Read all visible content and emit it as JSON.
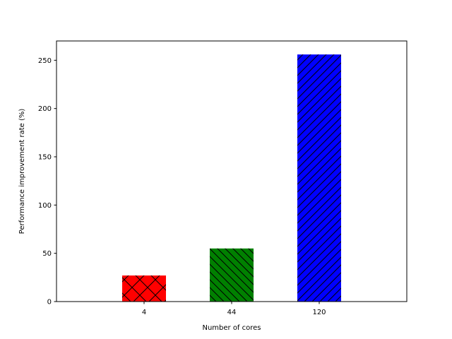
{
  "chart_data": {
    "type": "bar",
    "title": "",
    "xlabel": "Number of cores",
    "ylabel": "Performance improvement rate (%)",
    "categories": [
      "4",
      "44",
      "120"
    ],
    "values": [
      27,
      55,
      256
    ],
    "ylim": [
      0,
      270
    ],
    "yticks": [
      0,
      50,
      100,
      150,
      200,
      250
    ],
    "grid": false,
    "legend": "none",
    "bar_colors": [
      "#ff0000",
      "#008000",
      "#0000ff"
    ],
    "bar_hatches": [
      "cross",
      "backslash",
      "slash"
    ]
  }
}
